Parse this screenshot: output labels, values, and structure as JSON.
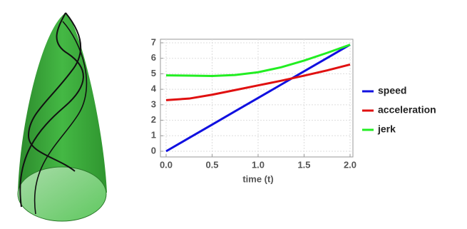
{
  "chart_data": {
    "type": "line",
    "x_label": "time (t)",
    "x": [
      0,
      0.25,
      0.5,
      0.75,
      1,
      1.25,
      1.5,
      1.75,
      2
    ],
    "series": [
      {
        "name": "speed",
        "color": "#1010e0",
        "values": [
          0,
          0.86,
          1.72,
          2.58,
          3.44,
          4.3,
          5.16,
          6.02,
          6.88
        ]
      },
      {
        "name": "acceleration",
        "color": "#e01010",
        "values": [
          3.3,
          3.4,
          3.65,
          3.95,
          4.25,
          4.55,
          4.88,
          5.22,
          5.6
        ]
      },
      {
        "name": "jerk",
        "color": "#22ee22",
        "values": [
          4.9,
          4.88,
          4.86,
          4.92,
          5.1,
          5.42,
          5.85,
          6.35,
          6.88
        ]
      }
    ],
    "xlim": [
      0,
      2
    ],
    "xticks": [
      {
        "value": 0,
        "label": "0.0"
      },
      {
        "value": 0.5,
        "label": "0.5"
      },
      {
        "value": 1,
        "label": "1.0"
      },
      {
        "value": 1.5,
        "label": "1.5"
      },
      {
        "value": 2,
        "label": "2.0"
      }
    ],
    "ylim": [
      0,
      7
    ],
    "yticks": [
      0,
      1,
      2,
      3,
      4,
      5,
      6,
      7
    ],
    "grid": true
  }
}
